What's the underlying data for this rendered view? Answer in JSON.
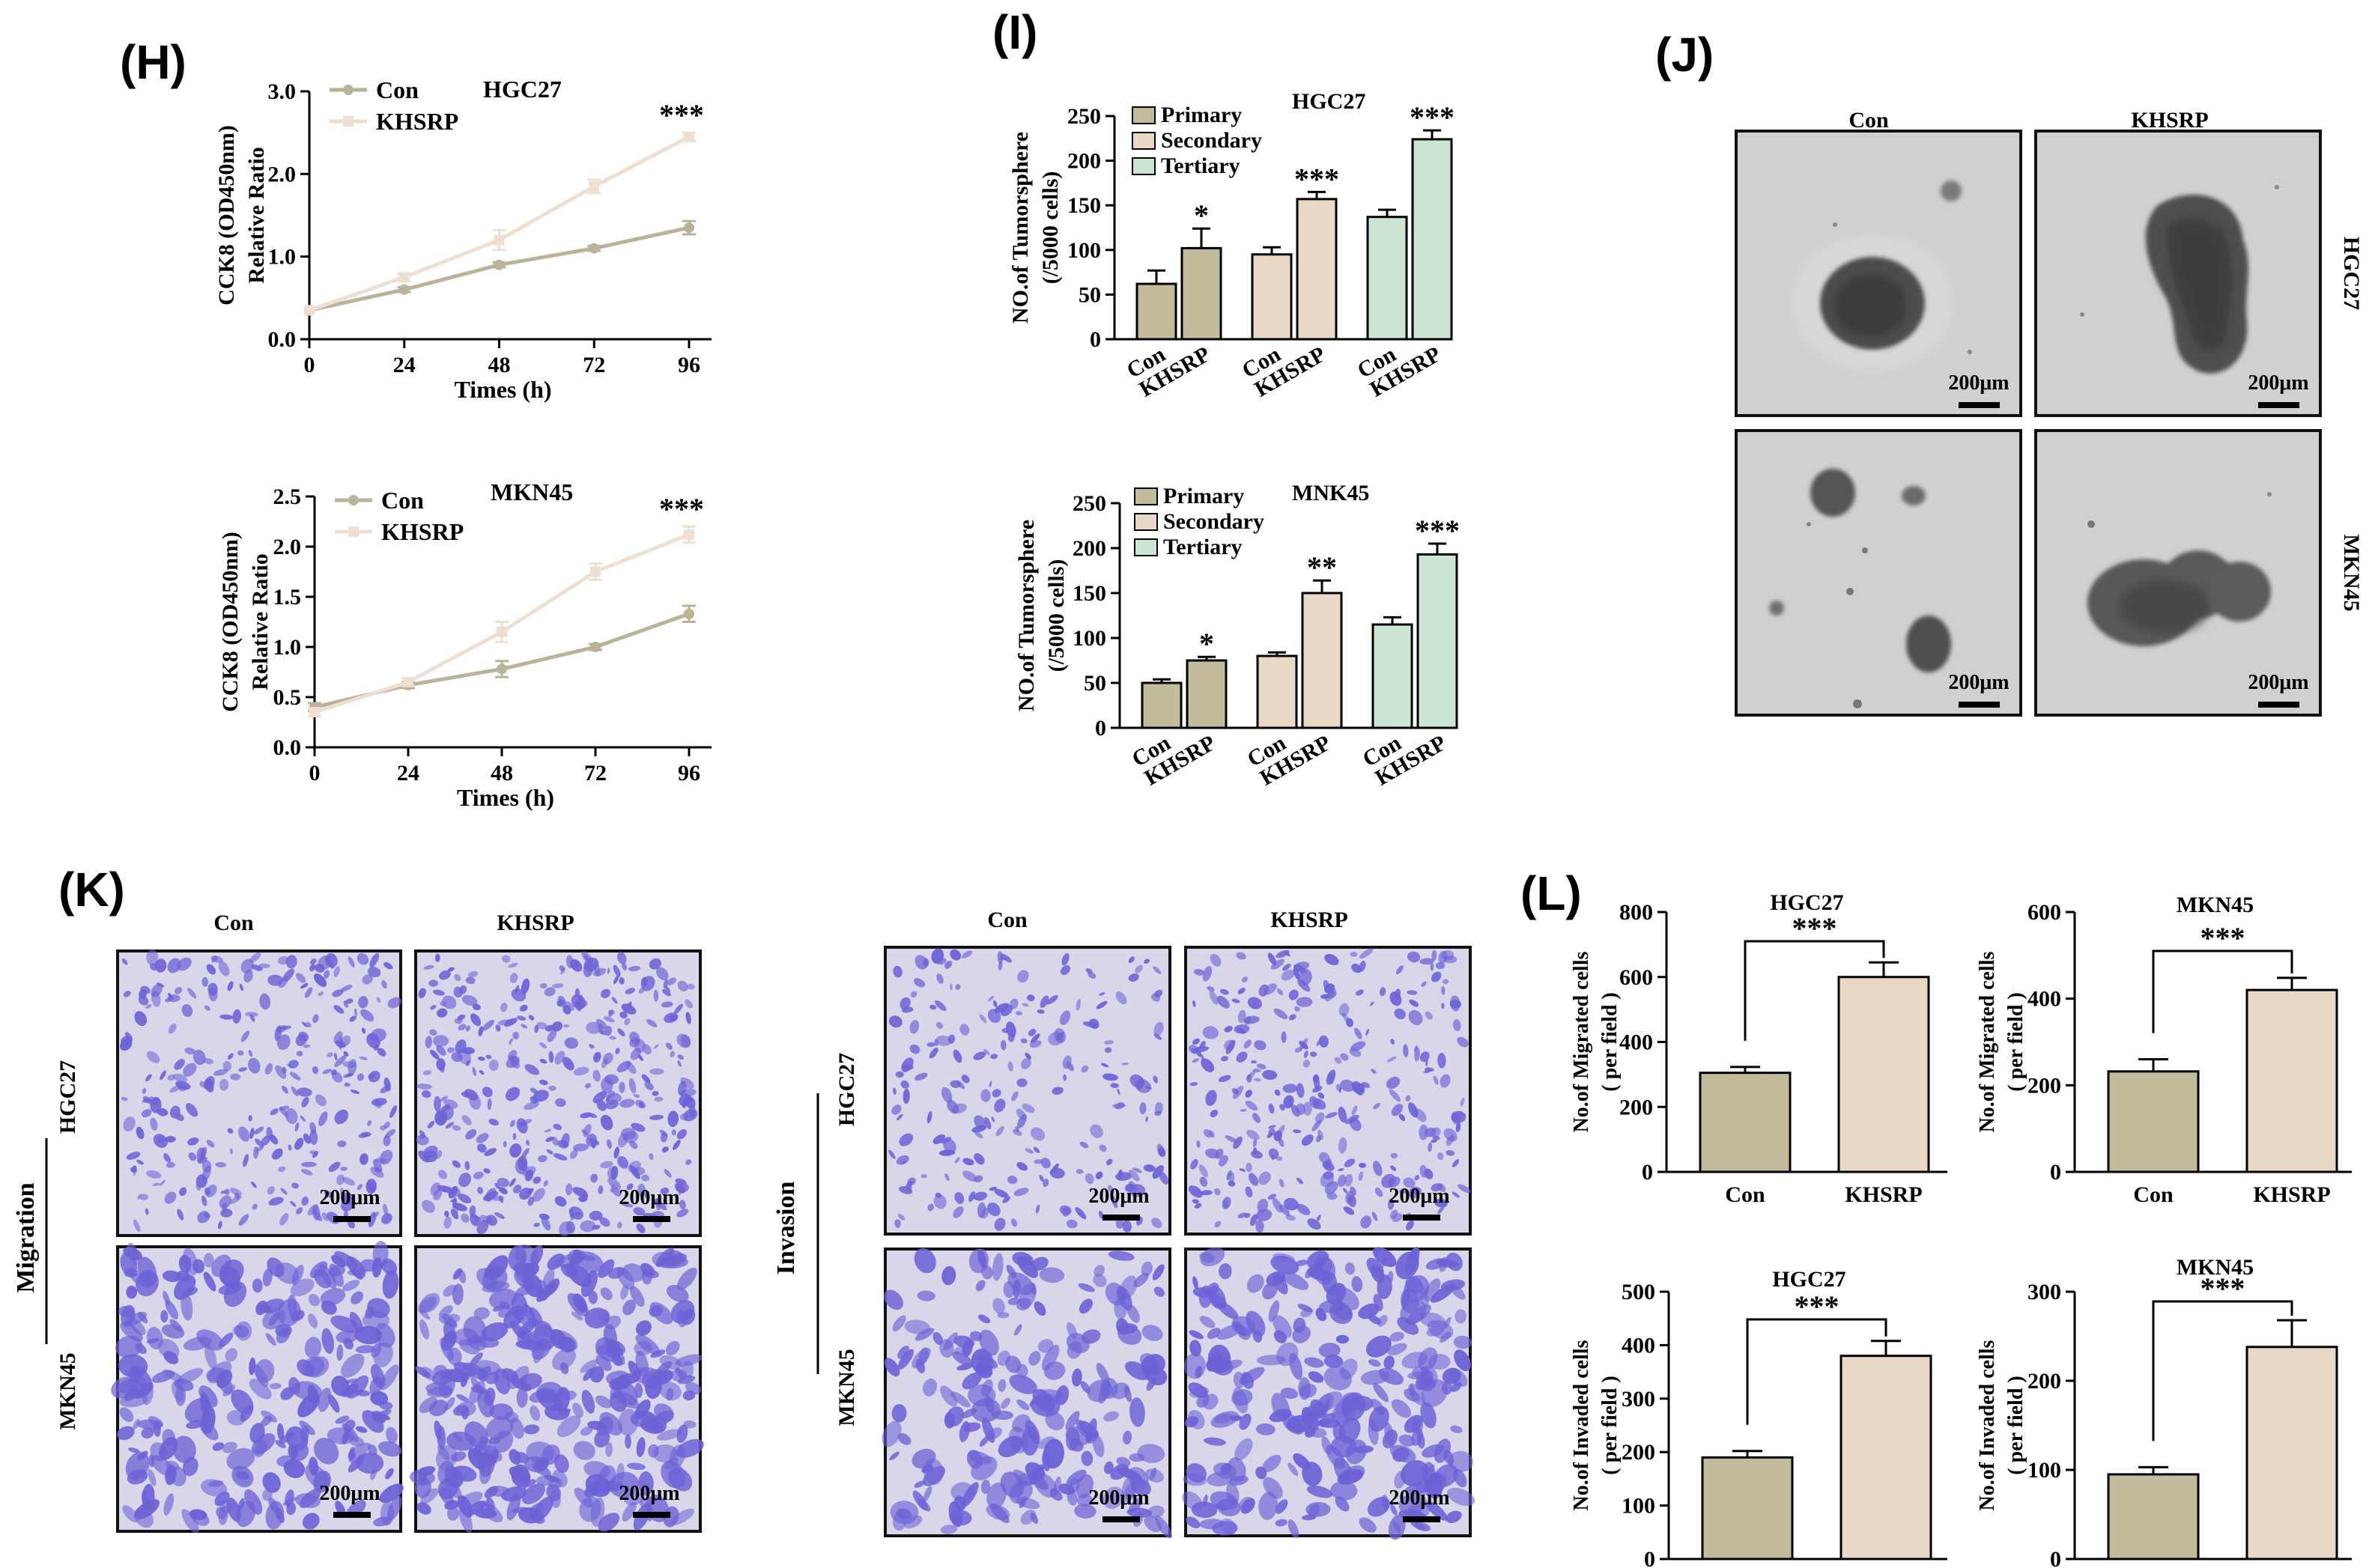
{
  "panels": {
    "H": "(H)",
    "I": "(I)",
    "J": "(J)",
    "K": "(K)",
    "L": "(L)"
  },
  "colors": {
    "con": "#c2bc9c",
    "khsrp": "#ead8c6",
    "line_con": "#b9b39a",
    "line_khsrp": "#eedfd2",
    "tertiary": "#cce6d4",
    "crystal_violet": "#6c62d6",
    "crystal_bg": "#d9d6ea",
    "sphere_bg": "#d2d2d2"
  },
  "chart_data": [
    {
      "id": "H1",
      "type": "line",
      "title": "HGC27",
      "xlabel": "Times (h)",
      "ylabel_line1": "CCK8 (OD450nm)",
      "ylabel_line2": "Relative Ratio",
      "x": [
        0,
        24,
        48,
        72,
        96
      ],
      "xticks": [
        "0",
        "24",
        "48",
        "72",
        "96"
      ],
      "yticks": [
        "0.0",
        "1.0",
        "2.0",
        "3.0"
      ],
      "ylim": [
        0,
        3.0
      ],
      "legend": [
        "Con",
        "KHSRP"
      ],
      "significance": "***",
      "series": [
        {
          "name": "Con",
          "values": [
            0.35,
            0.6,
            0.9,
            1.1,
            1.35
          ],
          "errors": [
            0.02,
            0.03,
            0.03,
            0.03,
            0.08
          ]
        },
        {
          "name": "KHSRP",
          "values": [
            0.35,
            0.75,
            1.2,
            1.85,
            2.45
          ],
          "errors": [
            0.02,
            0.04,
            0.12,
            0.08,
            0.05
          ]
        }
      ]
    },
    {
      "id": "H2",
      "type": "line",
      "title": "MKN45",
      "xlabel": "Times (h)",
      "ylabel_line1": "CCK8 (OD450nm)",
      "ylabel_line2": "Relative Ratio",
      "x": [
        0,
        24,
        48,
        72,
        96
      ],
      "xticks": [
        "0",
        "24",
        "48",
        "72",
        "96"
      ],
      "yticks": [
        "0.0",
        "0.5",
        "1.0",
        "1.5",
        "2.0",
        "2.5"
      ],
      "ylim": [
        0,
        2.5
      ],
      "legend": [
        "Con",
        "KHSRP"
      ],
      "significance": "***",
      "series": [
        {
          "name": "Con",
          "values": [
            0.4,
            0.62,
            0.78,
            1.0,
            1.33
          ],
          "errors": [
            0.04,
            0.03,
            0.08,
            0.03,
            0.08
          ]
        },
        {
          "name": "KHSRP",
          "values": [
            0.35,
            0.65,
            1.15,
            1.75,
            2.12
          ],
          "errors": [
            0.04,
            0.04,
            0.1,
            0.08,
            0.08
          ]
        }
      ]
    },
    {
      "id": "I1",
      "type": "bar",
      "title": "HGC27",
      "ylabel_line1": "NO.of Tumorsphere",
      "ylabel_line2": "(/5000 cells)",
      "categories": [
        "Con",
        "KHSRP",
        "Con",
        "KHSRP",
        "Con",
        "KHSRP"
      ],
      "groups": [
        "Primary",
        "Secondary",
        "Tertiary"
      ],
      "values": [
        62,
        102,
        95,
        157,
        137,
        224
      ],
      "errors": [
        15,
        22,
        8,
        8,
        8,
        10
      ],
      "significance": [
        "*",
        "***",
        "***"
      ],
      "yticks": [
        "0",
        "50",
        "100",
        "150",
        "200",
        "250"
      ],
      "ylim": [
        0,
        250
      ]
    },
    {
      "id": "I2",
      "type": "bar",
      "title": "MNK45",
      "ylabel_line1": "NO.of Tumorsphere",
      "ylabel_line2": "(/5000 cells)",
      "categories": [
        "Con",
        "KHSRP",
        "Con",
        "KHSRP",
        "Con",
        "KHSRP"
      ],
      "groups": [
        "Primary",
        "Secondary",
        "Tertiary"
      ],
      "values": [
        50,
        75,
        80,
        150,
        115,
        193
      ],
      "errors": [
        4,
        4,
        4,
        14,
        8,
        12
      ],
      "significance": [
        "*",
        "**",
        "***"
      ],
      "yticks": [
        "0",
        "50",
        "100",
        "150",
        "200",
        "250"
      ],
      "ylim": [
        0,
        250
      ]
    },
    {
      "id": "L1",
      "type": "bar",
      "title": "HGC27",
      "ylabel_line1": "No.of Migrated cells",
      "ylabel_line2": "( per field )",
      "categories": [
        "Con",
        "KHSRP"
      ],
      "values": [
        305,
        600
      ],
      "errors": [
        18,
        45
      ],
      "significance": "***",
      "yticks": [
        "0",
        "200",
        "400",
        "600",
        "800"
      ],
      "ylim": [
        0,
        800
      ]
    },
    {
      "id": "L2",
      "type": "bar",
      "title": "MKN45",
      "ylabel_line1": "No.of Migrated cells",
      "ylabel_line2": "( per field )",
      "categories": [
        "Con",
        "KHSRP"
      ],
      "values": [
        232,
        420
      ],
      "errors": [
        28,
        28
      ],
      "significance": "***",
      "yticks": [
        "0",
        "200",
        "400",
        "600"
      ],
      "ylim": [
        0,
        600
      ]
    },
    {
      "id": "L3",
      "type": "bar",
      "title": "HGC27",
      "ylabel_line1": "No.of Invaded cells",
      "ylabel_line2": "( per field )",
      "categories": [
        "Con",
        "KHSRP"
      ],
      "values": [
        190,
        380
      ],
      "errors": [
        12,
        28
      ],
      "significance": "***",
      "yticks": [
        "0",
        "100",
        "200",
        "300",
        "400",
        "500"
      ],
      "ylim": [
        0,
        500
      ]
    },
    {
      "id": "L4",
      "type": "bar",
      "title": "MKN45",
      "ylabel_line1": "No.of Invaded cells",
      "ylabel_line2": "( per field )",
      "categories": [
        "Con",
        "KHSRP"
      ],
      "values": [
        95,
        238
      ],
      "errors": [
        8,
        30
      ],
      "significance": "***",
      "yticks": [
        "0",
        "100",
        "200",
        "300"
      ],
      "ylim": [
        0,
        300
      ]
    }
  ],
  "images": {
    "J": {
      "columns": [
        "Con",
        "KHSRP"
      ],
      "rows": [
        "HGC27",
        "MKN45"
      ],
      "scale": "200μm"
    },
    "K_migration": {
      "side_label": "Migration",
      "columns": [
        "Con",
        "KHSRP"
      ],
      "rows": [
        "HGC27",
        "MKN45"
      ],
      "scale": "200μm"
    },
    "K_invasion": {
      "side_label": "Invasion",
      "columns": [
        "Con",
        "KHSRP"
      ],
      "rows": [
        "HGC27",
        "MKN45"
      ],
      "scale": "200μm"
    }
  }
}
